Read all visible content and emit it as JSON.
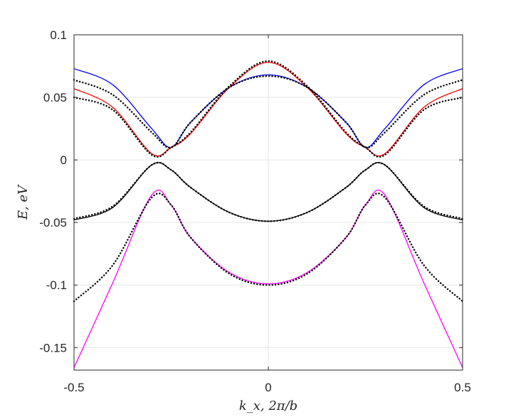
{
  "chart_data": {
    "type": "line",
    "xlabel": "k_x, 2π/b",
    "ylabel": "E, eV",
    "xlim": [
      -0.5,
      0.5
    ],
    "ylim": [
      -0.168,
      0.1
    ],
    "x_ticks": [
      {
        "value": -0.5,
        "label": "-0.5"
      },
      {
        "value": 0,
        "label": "0"
      },
      {
        "value": 0.5,
        "label": "0.5"
      }
    ],
    "y_ticks": [
      {
        "value": 0.1,
        "label": "0.1"
      },
      {
        "value": 0.05,
        "label": "0.05"
      },
      {
        "value": 0,
        "label": "0"
      },
      {
        "value": -0.05,
        "label": "-0.05"
      },
      {
        "value": -0.1,
        "label": "-0.1"
      },
      {
        "value": -0.15,
        "label": "-0.15"
      }
    ],
    "grid": true,
    "legend": "none",
    "series": [
      {
        "style": "solid",
        "color": "#0000ff",
        "x": [
          -0.5,
          -0.4,
          -0.3,
          -0.25,
          -0.2,
          -0.1,
          0,
          0.1,
          0.2,
          0.25,
          0.3,
          0.4,
          0.5
        ],
        "y": [
          0.073,
          0.06,
          0.025,
          0.01,
          0.03,
          0.058,
          0.068,
          0.058,
          0.03,
          0.01,
          0.025,
          0.06,
          0.073
        ]
      },
      {
        "style": "solid",
        "color": "#ff0000",
        "x": [
          -0.5,
          -0.4,
          -0.3,
          -0.25,
          -0.2,
          -0.1,
          0,
          0.1,
          0.2,
          0.25,
          0.3,
          0.4,
          0.5
        ],
        "y": [
          0.057,
          0.042,
          0.005,
          0.01,
          0.021,
          0.058,
          0.078,
          0.058,
          0.021,
          0.01,
          0.005,
          0.042,
          0.057
        ]
      },
      {
        "style": "solid",
        "color": "#ff00ff",
        "x": [
          -0.5,
          -0.4,
          -0.3,
          -0.25,
          -0.2,
          -0.1,
          0,
          0.1,
          0.2,
          0.25,
          0.3,
          0.4,
          0.5
        ],
        "y": [
          -0.166,
          -0.098,
          -0.028,
          -0.036,
          -0.062,
          -0.09,
          -0.099,
          -0.09,
          -0.062,
          -0.036,
          -0.028,
          -0.098,
          -0.166
        ]
      },
      {
        "style": "solid",
        "color": "#000000",
        "x": [
          -0.5,
          -0.4,
          -0.3,
          -0.25,
          -0.2,
          -0.1,
          0,
          0.1,
          0.2,
          0.25,
          0.3,
          0.4,
          0.5
        ],
        "y": [
          -0.048,
          -0.038,
          -0.004,
          -0.008,
          -0.022,
          -0.042,
          -0.049,
          -0.042,
          -0.022,
          -0.008,
          -0.004,
          -0.038,
          -0.048
        ]
      },
      {
        "style": "dotted",
        "color": "#000000",
        "x": [
          -0.5,
          -0.4,
          -0.3,
          -0.25,
          -0.2,
          -0.1,
          0,
          0.1,
          0.2,
          0.25,
          0.3,
          0.4,
          0.5
        ],
        "y": [
          0.064,
          0.052,
          0.022,
          0.01,
          0.03,
          0.058,
          0.067,
          0.058,
          0.03,
          0.01,
          0.022,
          0.052,
          0.064
        ]
      },
      {
        "style": "dotted",
        "color": "#000000",
        "x": [
          -0.5,
          -0.4,
          -0.3,
          -0.25,
          -0.2,
          -0.1,
          0,
          0.1,
          0.2,
          0.25,
          0.3,
          0.4,
          0.5
        ],
        "y": [
          0.05,
          0.04,
          0.004,
          0.01,
          0.022,
          0.059,
          0.079,
          0.059,
          0.022,
          0.01,
          0.004,
          0.04,
          0.05
        ]
      },
      {
        "style": "dotted",
        "color": "#000000",
        "x": [
          -0.5,
          -0.4,
          -0.3,
          -0.25,
          -0.2,
          -0.1,
          0,
          0.1,
          0.2,
          0.25,
          0.3,
          0.4,
          0.5
        ],
        "y": [
          -0.113,
          -0.084,
          -0.03,
          -0.036,
          -0.062,
          -0.091,
          -0.1,
          -0.091,
          -0.062,
          -0.036,
          -0.03,
          -0.084,
          -0.113
        ]
      },
      {
        "style": "dotted",
        "color": "#000000",
        "x": [
          -0.5,
          -0.4,
          -0.3,
          -0.25,
          -0.2,
          -0.1,
          0,
          0.1,
          0.2,
          0.25,
          0.3,
          0.4,
          0.5
        ],
        "y": [
          -0.047,
          -0.037,
          -0.004,
          -0.008,
          -0.022,
          -0.042,
          -0.049,
          -0.042,
          -0.022,
          -0.008,
          -0.004,
          -0.037,
          -0.047
        ]
      }
    ]
  }
}
